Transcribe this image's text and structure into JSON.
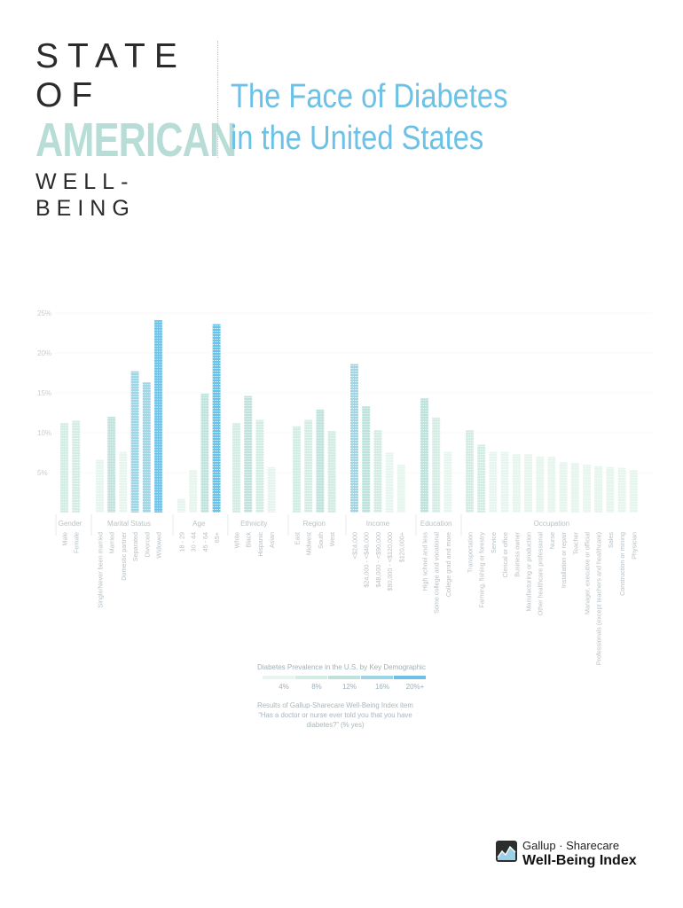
{
  "header": {
    "brand_line1": "STATE OF",
    "brand_line2": "AMERICAN",
    "brand_line3": "WELL-BEING",
    "title_line1": "The Face of Diabetes",
    "title_line2": "in the United States"
  },
  "colors": {
    "accent": "#6cc1e6",
    "brand_light": "#b7ddd6",
    "scale": [
      "#e6f5ee",
      "#d3ede4",
      "#bfe2dc",
      "#9fd6e6",
      "#6cc1e6"
    ]
  },
  "chart_data": {
    "type": "bar",
    "ylim": [
      0,
      25
    ],
    "yticks": [
      "25%",
      "20%",
      "15%",
      "10%",
      "5%"
    ],
    "ytick_values": [
      25,
      20,
      15,
      10,
      5
    ],
    "groups": [
      {
        "name": "Gender",
        "categories": [
          "Male",
          "Female"
        ],
        "values": [
          11.2,
          11.5
        ]
      },
      {
        "name": "Marital Status",
        "categories": [
          "Single/Never been married",
          "Married",
          "Domestic partner",
          "Separated",
          "Divorced",
          "Widowed"
        ],
        "values": [
          6.6,
          12.0,
          7.6,
          17.7,
          16.3,
          24.1
        ]
      },
      {
        "name": "Age",
        "categories": [
          "18 - 29",
          "30 - 44",
          "45 - 64",
          "65+"
        ],
        "values": [
          1.7,
          5.3,
          14.9,
          23.6
        ]
      },
      {
        "name": "Ethnicity",
        "categories": [
          "White",
          "Black",
          "Hispanic",
          "Asian"
        ],
        "values": [
          11.2,
          14.6,
          11.6,
          5.7
        ]
      },
      {
        "name": "Region",
        "categories": [
          "East",
          "Midwest",
          "South",
          "West"
        ],
        "values": [
          10.8,
          11.6,
          12.9,
          10.2
        ]
      },
      {
        "name": "Income",
        "categories": [
          "<$24,000",
          "$24,000 - <$48,000",
          "$48,000 - <$90,000",
          "$90,000 - <$120,000",
          "$120,000+"
        ],
        "values": [
          18.6,
          13.3,
          10.3,
          7.5,
          6.0
        ]
      },
      {
        "name": "Education",
        "categories": [
          "High school and less",
          "Some college and vocational",
          "College grad and more"
        ],
        "values": [
          14.3,
          11.9,
          7.6
        ]
      },
      {
        "name": "Occupation",
        "categories": [
          "Transportation",
          "Farming, fishing or forestry",
          "Service",
          "Clerical or office",
          "Business owner",
          "Manufacturing or production",
          "Other healthcare professional",
          "Nurse",
          "Installation or repair",
          "Teacher",
          "Manager, executive or official",
          "Professionals (except teachers and healthcare)",
          "Sales",
          "Construction or mining",
          "Physician"
        ],
        "values": [
          10.3,
          8.5,
          7.6,
          7.6,
          7.3,
          7.3,
          7.0,
          7.0,
          6.3,
          6.2,
          6.0,
          5.8,
          5.7,
          5.6,
          5.3
        ]
      }
    ],
    "legend": {
      "title": "Diabetes Prevalence in the U.S. by Key Demographic",
      "labels": [
        "4%",
        "8%",
        "12%",
        "16%",
        "20%+"
      ],
      "note_line1": "Results of Gallup-Sharecare Well-Being Index item",
      "note_line2": "“Has a doctor or nurse ever told you that you have",
      "note_line3": "diabetes?” (% yes)"
    }
  },
  "footer": {
    "logo_top": "Gallup · Sharecare",
    "logo_bottom": "Well-Being Index",
    "logo_icon": "gallup-sharecare-logo-icon"
  }
}
